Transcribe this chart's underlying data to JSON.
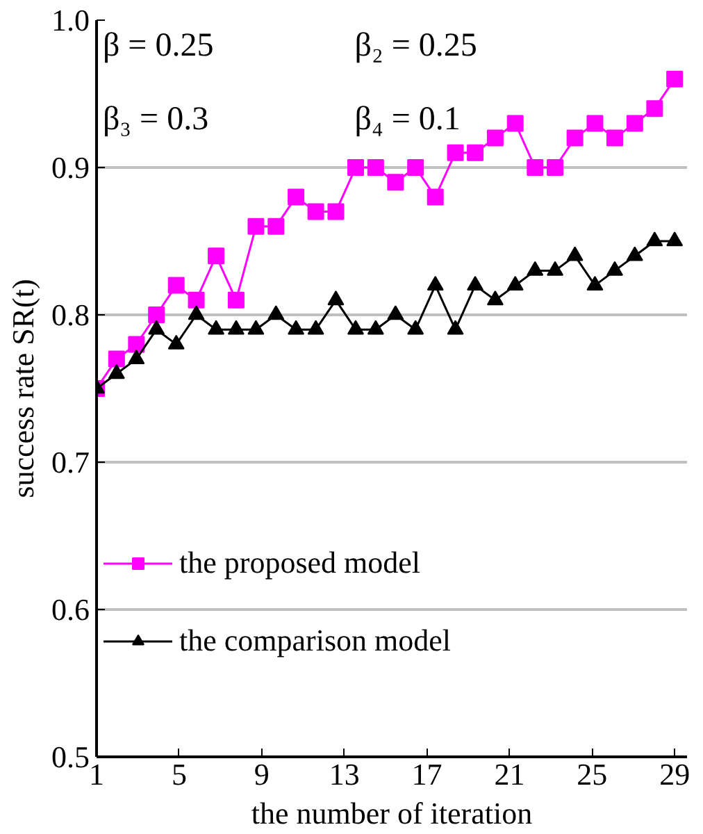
{
  "chart_data": {
    "type": "line",
    "xlabel": "the number of iteration",
    "ylabel": "success rate SR(t)",
    "x": [
      1,
      1.97,
      2.93,
      3.9,
      4.86,
      5.83,
      6.79,
      7.76,
      8.72,
      9.69,
      10.66,
      11.62,
      12.59,
      13.55,
      14.52,
      15.48,
      16.45,
      17.41,
      18.38,
      19.34,
      20.31,
      21.28,
      22.24,
      23.21,
      24.17,
      25.14,
      26.1,
      27.07,
      28.03,
      29
    ],
    "series": [
      {
        "name": "the proposed model",
        "color": "#ff00ff",
        "marker": "square",
        "values": [
          0.75,
          0.77,
          0.78,
          0.8,
          0.82,
          0.81,
          0.84,
          0.81,
          0.86,
          0.86,
          0.88,
          0.87,
          0.87,
          0.9,
          0.9,
          0.89,
          0.9,
          0.88,
          0.91,
          0.91,
          0.92,
          0.93,
          0.9,
          0.9,
          0.92,
          0.93,
          0.92,
          0.93,
          0.94,
          0.96
        ]
      },
      {
        "name": "the comparison model",
        "color": "#000000",
        "marker": "triangle",
        "values": [
          0.75,
          0.76,
          0.77,
          0.79,
          0.78,
          0.8,
          0.79,
          0.79,
          0.79,
          0.8,
          0.79,
          0.79,
          0.81,
          0.79,
          0.79,
          0.8,
          0.79,
          0.82,
          0.79,
          0.82,
          0.81,
          0.82,
          0.83,
          0.83,
          0.84,
          0.82,
          0.83,
          0.84,
          0.85,
          0.85
        ]
      }
    ],
    "xlim": [
      1,
      29.6
    ],
    "xticks": [
      1,
      5,
      9,
      13,
      17,
      21,
      25,
      29
    ],
    "ylim": [
      0.5,
      1.0
    ],
    "yticks": [
      {
        "value": 0.5,
        "label": "0.5"
      },
      {
        "value": 0.6,
        "label": "0.6"
      },
      {
        "value": 0.7,
        "label": "0.7"
      },
      {
        "value": 0.8,
        "label": "0.8"
      },
      {
        "value": 0.9,
        "label": "0.9"
      },
      {
        "value": 1.0,
        "label": "1.0"
      }
    ],
    "grid": "y",
    "legend": "left",
    "line_style": "solid",
    "annotations": [
      "β = 0.25",
      "β₂ = 0.25",
      "β₃ = 0.3",
      "β₄ = 0.1"
    ]
  }
}
